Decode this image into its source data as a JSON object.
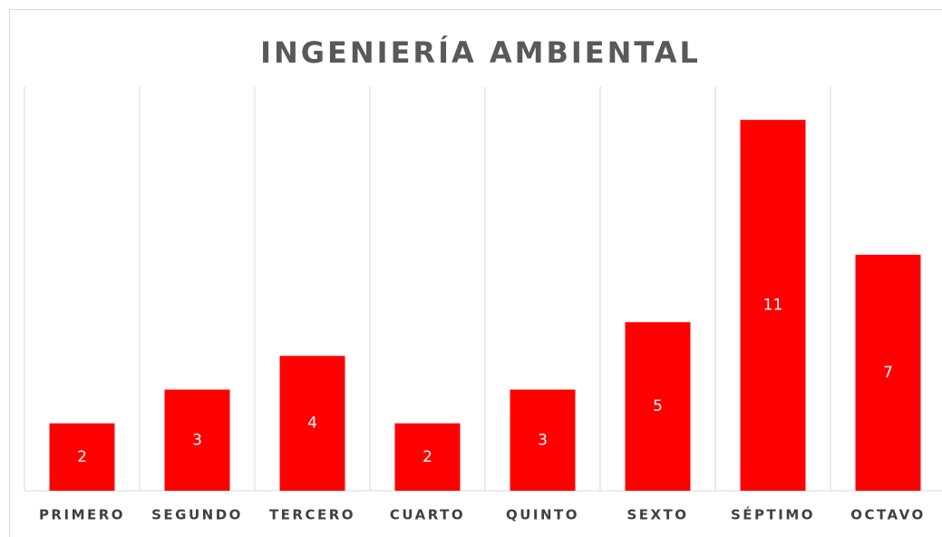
{
  "chart_data": {
    "type": "bar",
    "title": "INGENIERÍA AMBIENTAL",
    "categories": [
      "PRIMERO",
      "SEGUNDO",
      "TERCERO",
      "CUARTO",
      "QUINTO",
      "SEXTO",
      "SÉPTIMO",
      "OCTAVO"
    ],
    "values": [
      2,
      3,
      4,
      2,
      3,
      5,
      11,
      7
    ],
    "color": "#ff0000",
    "ylim": [
      0,
      12
    ]
  }
}
